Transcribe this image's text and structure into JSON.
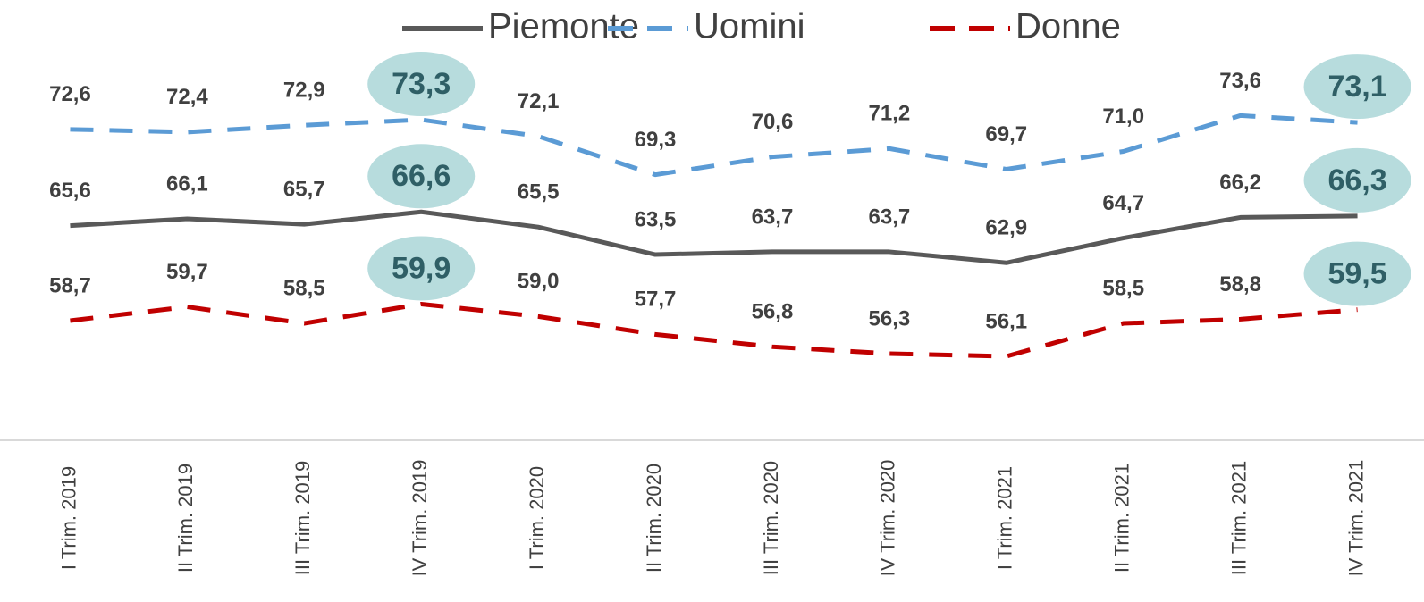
{
  "chart_data": {
    "type": "line",
    "categories": [
      "I Trim. 2019",
      "II Trim. 2019",
      "III Trim. 2019",
      "IV Trim. 2019",
      "I Trim. 2020",
      "II Trim. 2020",
      "III Trim. 2020",
      "IV Trim. 2020",
      "I Trim. 2021",
      "II Trim. 2021",
      "III Trim. 2021",
      "IV Trim. 2021"
    ],
    "series": [
      {
        "name": "Piemonte",
        "color": "#595959",
        "dash": "solid",
        "values": [
          65.6,
          66.1,
          65.7,
          66.6,
          65.5,
          63.5,
          63.7,
          63.7,
          62.9,
          64.7,
          66.2,
          66.3
        ],
        "value_labels": [
          "65,6",
          "66,1",
          "65,7",
          "66,6",
          "65,5",
          "63,5",
          "63,7",
          "63,7",
          "62,9",
          "64,7",
          "66,2",
          "66,3"
        ]
      },
      {
        "name": "Uomini",
        "color": "#5b9bd5",
        "dash": "dashed",
        "values": [
          72.6,
          72.4,
          72.9,
          73.3,
          72.1,
          69.3,
          70.6,
          71.2,
          69.7,
          71.0,
          73.6,
          73.1
        ],
        "value_labels": [
          "72,6",
          "72,4",
          "72,9",
          "73,3",
          "72,1",
          "69,3",
          "70,6",
          "71,2",
          "69,7",
          "71,0",
          "73,6",
          "73,1"
        ]
      },
      {
        "name": "Donne",
        "color": "#c00000",
        "dash": "dashed",
        "values": [
          58.7,
          59.7,
          58.5,
          59.9,
          59.0,
          57.7,
          56.8,
          56.3,
          56.1,
          58.5,
          58.8,
          59.5
        ],
        "value_labels": [
          "58,7",
          "59,7",
          "58,5",
          "59,9",
          "59,0",
          "57,7",
          "56,8",
          "56,3",
          "56,1",
          "58,5",
          "58,8",
          "59,5"
        ]
      }
    ],
    "ylim": [
      50,
      82
    ],
    "legend": "top"
  }
}
